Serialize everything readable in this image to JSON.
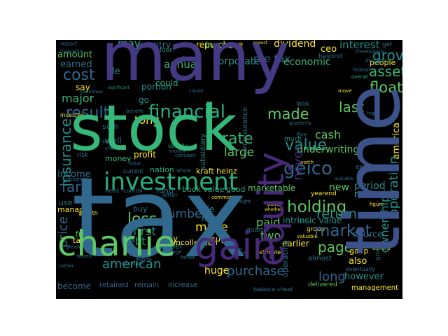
{
  "figure": {
    "background": "#000000",
    "page_background": "#ffffff"
  },
  "palette": {
    "purple": "#482878",
    "violet": "#443983",
    "indigo": "#3b528b",
    "blue": "#31688e",
    "steel": "#2c728e",
    "teal": "#21918c",
    "seagreen": "#28ae80",
    "green": "#35b779",
    "lime": "#5ec962",
    "yellowgreen": "#addc30",
    "yellow": "#fde725",
    "darkpurple": "#440154"
  },
  "words": {
    "many": "many",
    "stock": "stock",
    "tax": "tax",
    "time": "time",
    "charlie": "charlie",
    "investment": "investment",
    "gain": "gain",
    "equity": "equity",
    "financial": "financial",
    "insurance": "insurance",
    "geico": "geico",
    "holding": "holding",
    "market": "market",
    "value": "value",
    "cost": "cost",
    "asset": "asset",
    "float": "float",
    "loss": "loss",
    "made": "made",
    "price": "price",
    "grove": "grove",
    "result": "result",
    "tony": "tony",
    "rate": "rate",
    "last": "last",
    "american": "american",
    "purchase": "purchase",
    "operation": "operation",
    "earned": "earned",
    "amount": "amount",
    "may": "may",
    "country": "country",
    "repurchase": "repurchase",
    "insurer": "insurer",
    "dividend": "dividend",
    "ceo": "ceo",
    "interest": "interest",
    "corporate": "corporate",
    "pre_tax": "pre tax",
    "economic": "economic",
    "annual": "annual",
    "major": "major",
    "say": "say",
    "cash": "cash",
    "america": "america",
    "large": "large",
    "underwriting": "underwriting",
    "never": "never",
    "far": "far",
    "new": "new",
    "two": "two",
    "paid": "paid",
    "page": "page",
    "income": "income",
    "record": "record",
    "period": "period",
    "number": "number",
    "make": "make",
    "first": "first",
    "debt": "debt",
    "let": "let",
    "pay": "pay",
    "return": "return",
    "long": "long",
    "however": "however",
    "ownership": "ownership",
    "profit": "profit",
    "nation": "nation",
    "kraft_heinz": "kraft heinz",
    "book_value": "book value",
    "marketable": "marketable",
    "good": "good",
    "rule": "rule",
    "hold": "hold",
    "fund": "fund",
    "intrinsic_value": "intrinsic value",
    "source": "source",
    "earlier": "earlier",
    "gaap": "gaap",
    "also": "also",
    "huge": "huge",
    "management": "management",
    "incollection": "incollection",
    "become": "become",
    "retained": "retained",
    "remain": "remain",
    "increase": "increase",
    "balance_sheet": "balance sheet",
    "delivered": "delivered",
    "money": "money",
    "subsidiary": "subsidiary",
    "use": "use",
    "manager": "manager",
    "free": "free",
    "take": "take",
    "buy": "buy",
    "well": "well",
    "sum": "sum",
    "non_insurance": "non insurance",
    "people": "people",
    "le": "le",
    "report": "report",
    "four": "four",
    "find": "find",
    "go": "go",
    "could": "could",
    "portion": "portion",
    "beyond": "beyond",
    "group": "group",
    "almost": "almost",
    "quarterly": "quarterly",
    "greater": "greater",
    "though": "though",
    "expense": "expense",
    "funding": "funding",
    "described": "described",
    "federal": "federal",
    "overall": "overall",
    "move": "move",
    "threesimply": "threesimply",
    "get": "get",
    "risk": "risk",
    "need": "need",
    "control": "control",
    "letter": "letter",
    "common": "common",
    "quarter": "quarter",
    "estimate": "estimate",
    "percentage": "percentage",
    "per": "per",
    "look": "look",
    "five": "five",
    "much": "much",
    "current": "current",
    "whole": "whole",
    "month": "month",
    "consider": "consider",
    "usually": "usually",
    "investee": "investee",
    "sometimes": "sometimes",
    "benefit": "benefit",
    "significant": "significant",
    "claim": "claim",
    "change": "change",
    "total": "total",
    "prospect": "prospect",
    "meanwhile": "meanwhile",
    "expect": "expect",
    "performance": "performance",
    "better": "better",
    "cause": "cause",
    "policy": "policy",
    "whether": "whether",
    "figure": "figure",
    "fact": "fact",
    "might": "might",
    "valuable": "valuable",
    "eventually": "eventually",
    "available": "available",
    "grown": "grown",
    "others": "others",
    "yearend": "yearend",
    "growth": "growth",
    "based": "based",
    "rather": "rather",
    "future": "future",
    "example": "example",
    "forest": "forest",
    "indeed": "indeed",
    "war": "war",
    "call": "call",
    "part": "part",
    "given": "given",
    "high": "high",
    "worth": "worth",
    "operating": "operating",
    "year": "year",
    "end": "end"
  }
}
